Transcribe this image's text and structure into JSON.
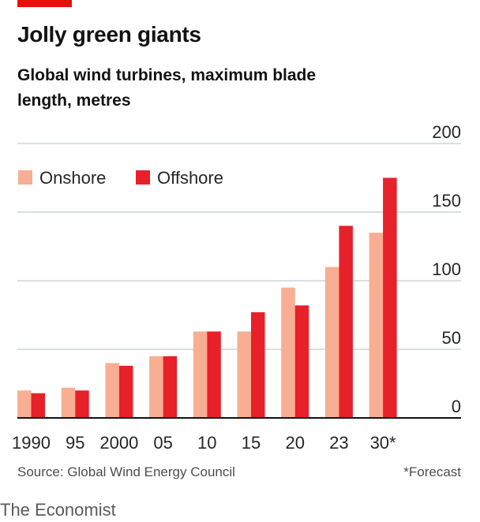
{
  "header": {
    "title": "Jolly green giants",
    "subtitle": "Global wind turbines, maximum blade length, metres"
  },
  "footer": {
    "source": "Source: Global Wind Energy Council",
    "footnote": "*Forecast",
    "brand": "The Economist"
  },
  "colors": {
    "accent": "#e3120b",
    "onshore": "#f7ae93",
    "offshore": "#e8202a"
  },
  "chart_data": {
    "type": "bar",
    "title": "Jolly green giants",
    "subtitle": "Global wind turbines, maximum blade length, metres",
    "categories": [
      "1990",
      "95",
      "2000",
      "05",
      "10",
      "15",
      "20",
      "23",
      "30*"
    ],
    "series": [
      {
        "name": "Onshore",
        "color": "#f7ae93",
        "values": [
          20,
          22,
          40,
          45,
          63,
          63,
          95,
          110,
          135
        ]
      },
      {
        "name": "Offshore",
        "color": "#e8202a",
        "values": [
          18,
          20,
          38,
          45,
          63,
          77,
          82,
          140,
          175
        ]
      }
    ],
    "ylim": [
      0,
      200
    ],
    "yticks": [
      0,
      50,
      100,
      150,
      200
    ],
    "y_axis_side": "right",
    "grid": true,
    "legend": "top-left"
  }
}
